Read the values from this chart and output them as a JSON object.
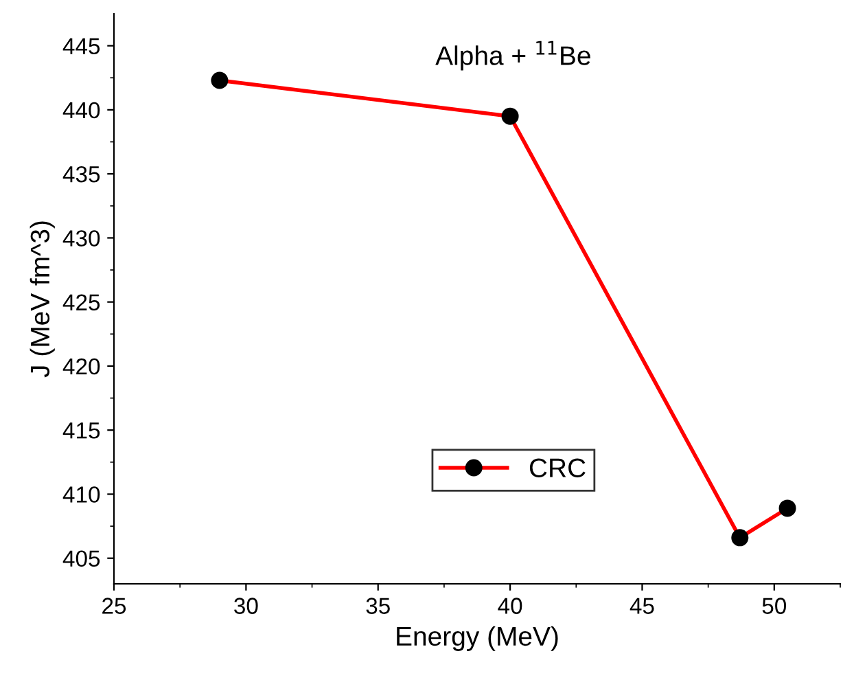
{
  "chart_data": {
    "type": "line",
    "xlabel": "Energy (MeV)",
    "ylabel": "J (MeV fm^3)",
    "annotations": [
      {
        "text": "Alpha + $^{11}$Be"
      }
    ],
    "x": [
      29.0,
      40.0,
      48.7,
      50.5
    ],
    "series": [
      {
        "name": "CRC",
        "color": "#ff0000",
        "values": [
          442.3,
          439.5,
          406.6,
          408.9
        ]
      }
    ],
    "xlim": [
      25,
      52.5
    ],
    "xticks": [
      25,
      30,
      35,
      40,
      45,
      50
    ],
    "ylim": [
      403.0,
      447.5
    ],
    "yticks": [
      405,
      410,
      415,
      420,
      425,
      430,
      435,
      440,
      445
    ],
    "marker": "circle",
    "line_style": "solid",
    "grid": false,
    "legend": "bottom"
  }
}
